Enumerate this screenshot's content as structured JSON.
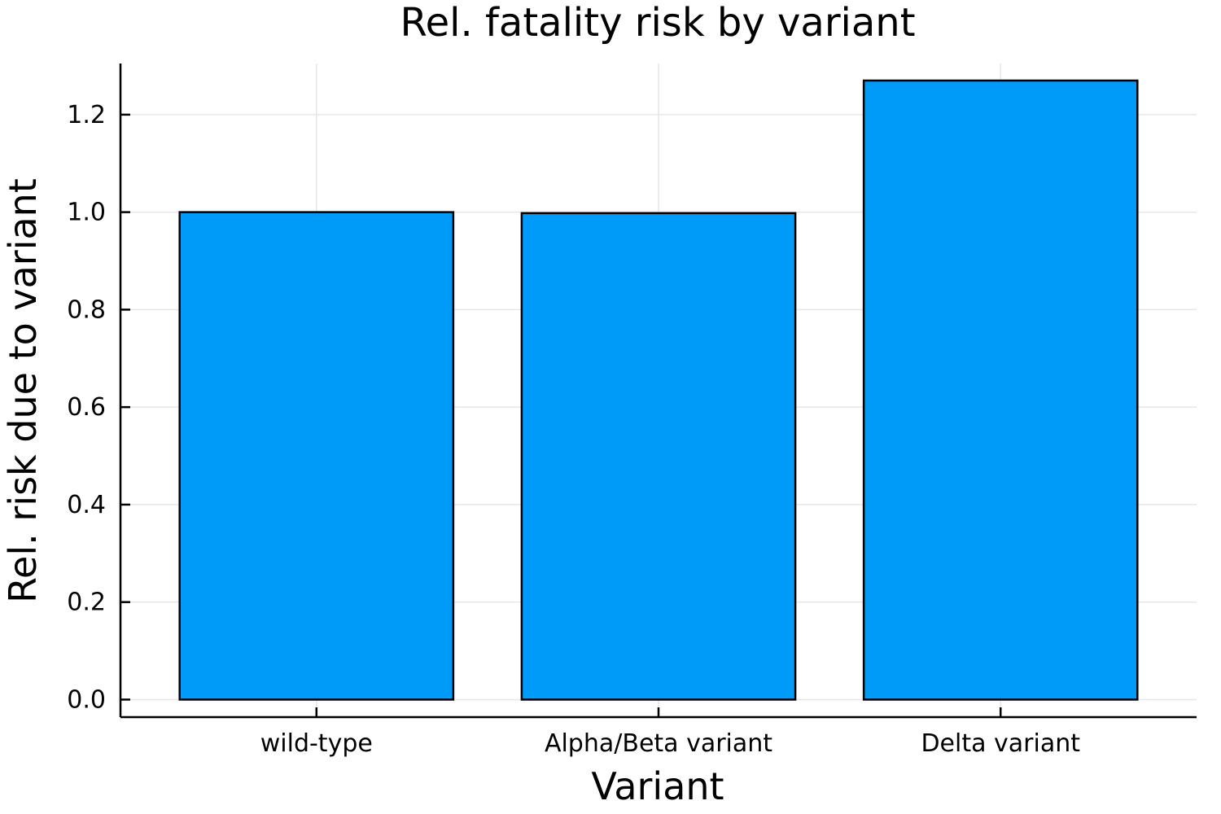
{
  "chart_data": {
    "type": "bar",
    "title": "Rel. fatality risk by variant",
    "xlabel": "Variant",
    "ylabel": "Rel. risk due to variant",
    "categories": [
      "wild-type",
      "Alpha/Beta variant",
      "Delta variant"
    ],
    "values": [
      1.0,
      0.998,
      1.27
    ],
    "ylim": [
      -0.036,
      1.305
    ],
    "yticks": [
      0.0,
      0.2,
      0.4,
      0.6,
      0.8,
      1.0,
      1.2
    ],
    "ytick_labels": [
      "0.0",
      "0.2",
      "0.4",
      "0.6",
      "0.8",
      "1.0",
      "1.2"
    ],
    "grid": true,
    "legend": "none",
    "bar_color": "#009af9"
  }
}
